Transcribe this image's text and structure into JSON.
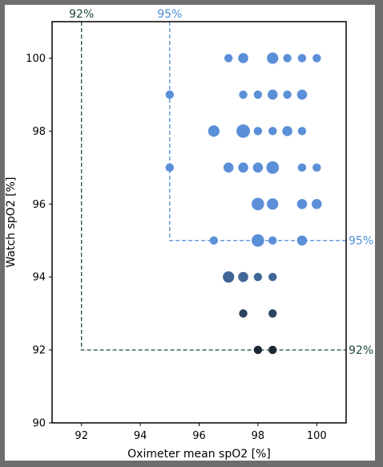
{
  "chart_data": {
    "type": "scatter",
    "xlabel": "Oximeter mean spO2 [%]",
    "ylabel": "Watch spO2 [%]",
    "xlim": [
      91,
      101
    ],
    "ylim": [
      90,
      101
    ],
    "xticks": [
      92,
      94,
      96,
      98,
      100
    ],
    "yticks": [
      90,
      92,
      94,
      96,
      98,
      100
    ],
    "grid": false,
    "thresholds": [
      {
        "value": 92,
        "label_top": "92%",
        "label_side": "92%",
        "color": "#1d4a3c"
      },
      {
        "value": 95,
        "label_top": "95%",
        "label_side": "95%",
        "color": "#4d8fd6"
      }
    ],
    "points": [
      {
        "x": 97.0,
        "y": 100,
        "size": 1,
        "color": "#5b8fd8"
      },
      {
        "x": 97.5,
        "y": 100,
        "size": 2,
        "color": "#5b8fd8"
      },
      {
        "x": 98.5,
        "y": 100,
        "size": 3,
        "color": "#5b8fd8"
      },
      {
        "x": 99.0,
        "y": 100,
        "size": 1,
        "color": "#5b8fd8"
      },
      {
        "x": 99.5,
        "y": 100,
        "size": 1,
        "color": "#5b8fd8"
      },
      {
        "x": 100.0,
        "y": 100,
        "size": 1,
        "color": "#5b8fd8"
      },
      {
        "x": 95.0,
        "y": 99,
        "size": 1,
        "color": "#5b8fd8"
      },
      {
        "x": 97.5,
        "y": 99,
        "size": 1,
        "color": "#5b8fd8"
      },
      {
        "x": 98.0,
        "y": 99,
        "size": 1,
        "color": "#5b8fd8"
      },
      {
        "x": 98.5,
        "y": 99,
        "size": 2,
        "color": "#5b8fd8"
      },
      {
        "x": 99.0,
        "y": 99,
        "size": 1,
        "color": "#5b8fd8"
      },
      {
        "x": 99.5,
        "y": 99,
        "size": 2,
        "color": "#5b8fd8"
      },
      {
        "x": 96.5,
        "y": 98,
        "size": 3,
        "color": "#5b8fd8"
      },
      {
        "x": 97.5,
        "y": 98,
        "size": 5,
        "color": "#5b8fd8"
      },
      {
        "x": 98.0,
        "y": 98,
        "size": 1,
        "color": "#5b8fd8"
      },
      {
        "x": 98.5,
        "y": 98,
        "size": 1,
        "color": "#5b8fd8"
      },
      {
        "x": 99.0,
        "y": 98,
        "size": 2,
        "color": "#5b8fd8"
      },
      {
        "x": 99.5,
        "y": 98,
        "size": 1,
        "color": "#5b8fd8"
      },
      {
        "x": 95.0,
        "y": 97,
        "size": 1,
        "color": "#5b8fd8"
      },
      {
        "x": 97.0,
        "y": 97,
        "size": 2,
        "color": "#5b8fd8"
      },
      {
        "x": 97.5,
        "y": 97,
        "size": 2,
        "color": "#5b8fd8"
      },
      {
        "x": 98.0,
        "y": 97,
        "size": 2,
        "color": "#5b8fd8"
      },
      {
        "x": 98.5,
        "y": 97,
        "size": 4,
        "color": "#5b8fd8"
      },
      {
        "x": 99.5,
        "y": 97,
        "size": 1,
        "color": "#5b8fd8"
      },
      {
        "x": 100.0,
        "y": 97,
        "size": 1,
        "color": "#5b8fd8"
      },
      {
        "x": 98.0,
        "y": 96,
        "size": 4,
        "color": "#5b8fd8"
      },
      {
        "x": 98.5,
        "y": 96,
        "size": 3,
        "color": "#5b8fd8"
      },
      {
        "x": 99.5,
        "y": 96,
        "size": 2,
        "color": "#5b8fd8"
      },
      {
        "x": 100.0,
        "y": 96,
        "size": 2,
        "color": "#5b8fd8"
      },
      {
        "x": 96.5,
        "y": 95,
        "size": 1,
        "color": "#5b8fd8"
      },
      {
        "x": 98.0,
        "y": 95,
        "size": 4,
        "color": "#5b8fd8"
      },
      {
        "x": 98.5,
        "y": 95,
        "size": 1,
        "color": "#5b8fd8"
      },
      {
        "x": 99.5,
        "y": 95,
        "size": 2,
        "color": "#5b8fd8"
      },
      {
        "x": 97.0,
        "y": 94,
        "size": 3,
        "color": "#3f6696"
      },
      {
        "x": 97.5,
        "y": 94,
        "size": 2,
        "color": "#3f6696"
      },
      {
        "x": 98.0,
        "y": 94,
        "size": 1,
        "color": "#3f6696"
      },
      {
        "x": 98.5,
        "y": 94,
        "size": 1,
        "color": "#3f6696"
      },
      {
        "x": 97.5,
        "y": 93,
        "size": 1,
        "color": "#2c4561"
      },
      {
        "x": 98.5,
        "y": 93,
        "size": 1,
        "color": "#2c4561"
      },
      {
        "x": 98.0,
        "y": 92,
        "size": 1,
        "color": "#1c2833"
      },
      {
        "x": 98.5,
        "y": 92,
        "size": 1,
        "color": "#1c2833"
      }
    ]
  }
}
